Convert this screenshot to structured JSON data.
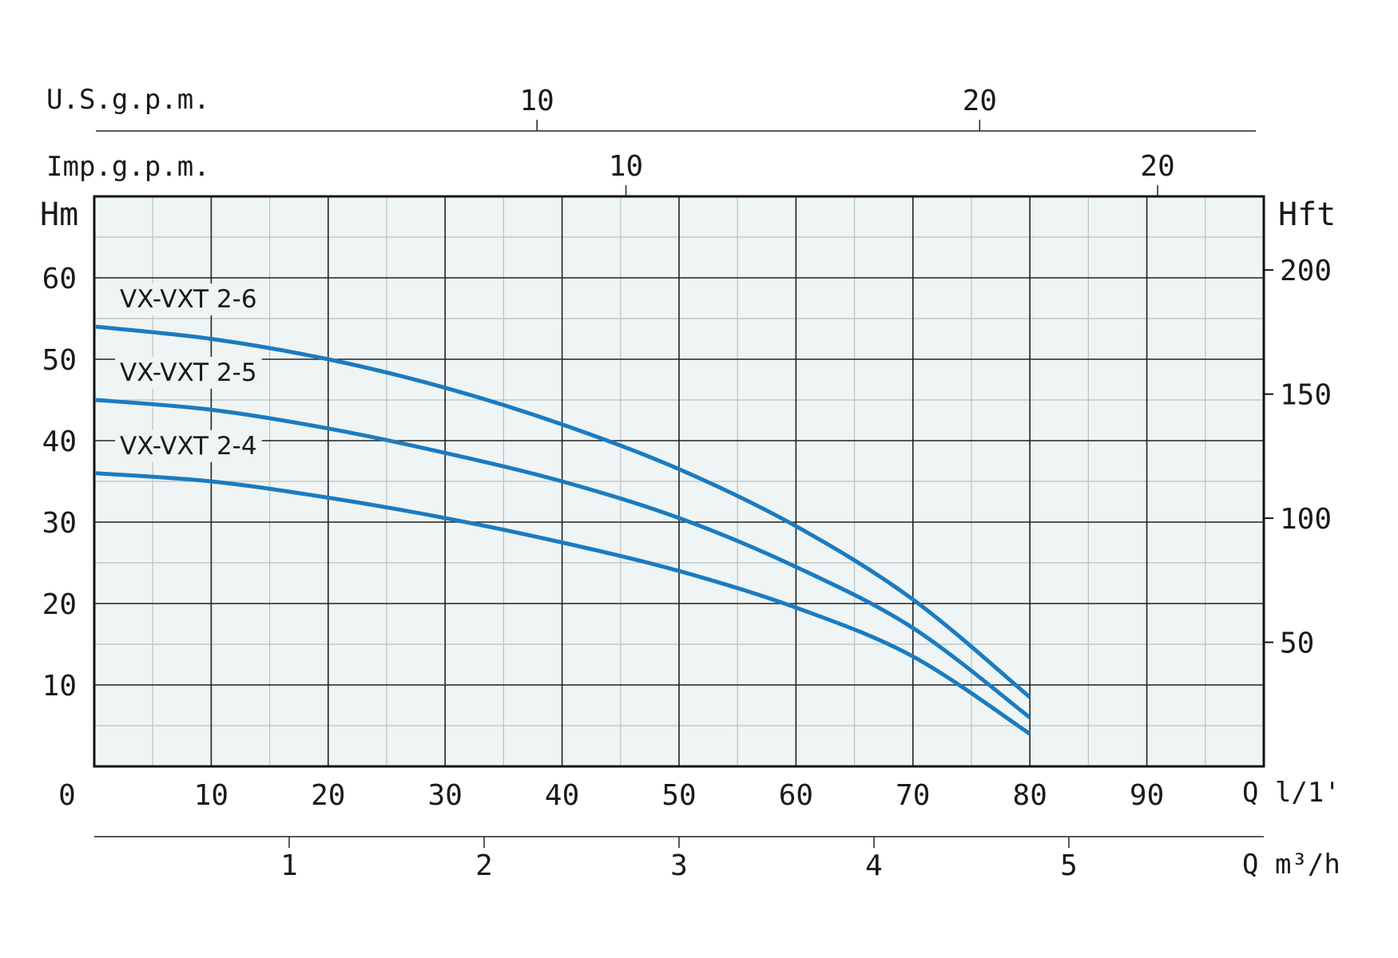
{
  "chart_data": {
    "type": "line",
    "title": "",
    "colors": {
      "series": "#1b7bc1",
      "plot_background": "#eef5f4",
      "grid_major": "#222222",
      "grid_minor": "#b9c2c1"
    },
    "grid": true,
    "x": {
      "label": "Q l/1'",
      "range": [
        0,
        100
      ],
      "ticks": [
        0,
        10,
        20,
        30,
        40,
        50,
        60,
        70,
        80,
        90
      ],
      "minor_ticks": [
        5,
        15,
        25,
        35,
        45,
        55,
        65,
        75,
        85,
        95
      ]
    },
    "y": {
      "label": "Hm",
      "range": [
        0,
        70
      ],
      "ticks": [
        10,
        20,
        30,
        40,
        50,
        60
      ],
      "minor_ticks": [
        5,
        15,
        25,
        35,
        45,
        55,
        65
      ]
    },
    "y_right": {
      "label": "Hft",
      "ticks": [
        50,
        100,
        150,
        200
      ]
    },
    "x_secondary_top": [
      {
        "label": "U.S.g.p.m.",
        "ticks": [
          10,
          20
        ]
      },
      {
        "label": "Imp.g.p.m.",
        "ticks": [
          10,
          20
        ]
      }
    ],
    "x_secondary_bottom": {
      "label": "Q m³/h",
      "ticks": [
        1,
        2,
        3,
        4,
        5
      ]
    },
    "series": [
      {
        "name": "VX-VXT 2-6",
        "x": [
          0,
          10,
          20,
          30,
          40,
          50,
          60,
          70,
          80
        ],
        "y": [
          54,
          52.5,
          50,
          46.5,
          42,
          36.5,
          29.5,
          20.5,
          8.5
        ]
      },
      {
        "name": "VX-VXT 2-5",
        "x": [
          0,
          10,
          20,
          30,
          40,
          50,
          60,
          70,
          80
        ],
        "y": [
          45,
          43.8,
          41.5,
          38.5,
          35,
          30.5,
          24.5,
          17,
          6
        ]
      },
      {
        "name": "VX-VXT 2-4",
        "x": [
          0,
          10,
          20,
          30,
          40,
          50,
          60,
          70,
          80
        ],
        "y": [
          36,
          35,
          33,
          30.5,
          27.5,
          24,
          19.5,
          13.5,
          4
        ]
      }
    ]
  }
}
